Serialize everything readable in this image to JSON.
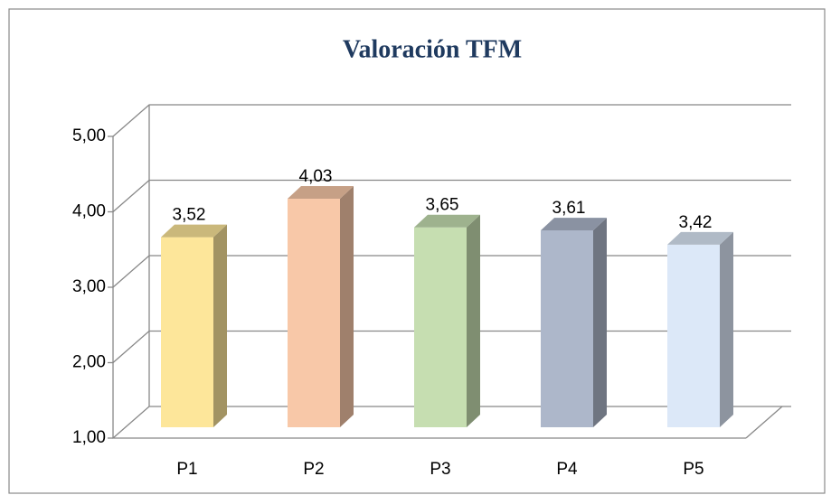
{
  "chart_data": {
    "type": "bar3d",
    "title": "Valoración TFM",
    "categories": [
      "P1",
      "P2",
      "P3",
      "P4",
      "P5"
    ],
    "values": [
      3.52,
      4.03,
      3.65,
      3.61,
      3.42
    ],
    "value_labels": [
      "3,52",
      "4,03",
      "3,65",
      "3,61",
      "3,42"
    ],
    "colors": [
      "#fde69a",
      "#f8c8a8",
      "#c6deb1",
      "#adb7ca",
      "#dce8f8"
    ],
    "ylim": [
      1,
      5
    ],
    "yticks": [
      {
        "value": 1,
        "label": "1,00"
      },
      {
        "value": 2,
        "label": "2,00"
      },
      {
        "value": 3,
        "label": "3,00"
      },
      {
        "value": 4,
        "label": "4,00"
      },
      {
        "value": 5,
        "label": "5,00"
      }
    ],
    "grid": true
  }
}
